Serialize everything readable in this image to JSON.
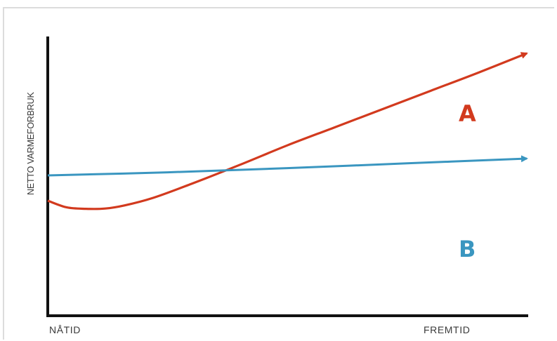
{
  "chart_data": {
    "type": "line",
    "title": "",
    "xlabel": "",
    "ylabel": "NETTO VARMEFORBRUK",
    "x_tick_labels": [
      "NÅTID",
      "FREMTID"
    ],
    "xlim": [
      0,
      100
    ],
    "ylim": [
      0,
      100
    ],
    "grid": false,
    "series": [
      {
        "name": "A",
        "color": "#d23a1e",
        "x": [
          0,
          4,
          8,
          12,
          16,
          22,
          30,
          40,
          50,
          60,
          70,
          80,
          90,
          100
        ],
        "y": [
          41,
          38.6,
          38.1,
          38.2,
          39.3,
          42,
          47,
          53.7,
          60.7,
          67.2,
          73.7,
          80.2,
          86.7,
          93.5
        ]
      },
      {
        "name": "B",
        "color": "#3a96c0",
        "x": [
          0,
          25,
          50,
          75,
          100
        ],
        "y": [
          50,
          51.1,
          52.6,
          54.3,
          56
        ]
      }
    ],
    "annotations": [
      "A",
      "B"
    ]
  }
}
